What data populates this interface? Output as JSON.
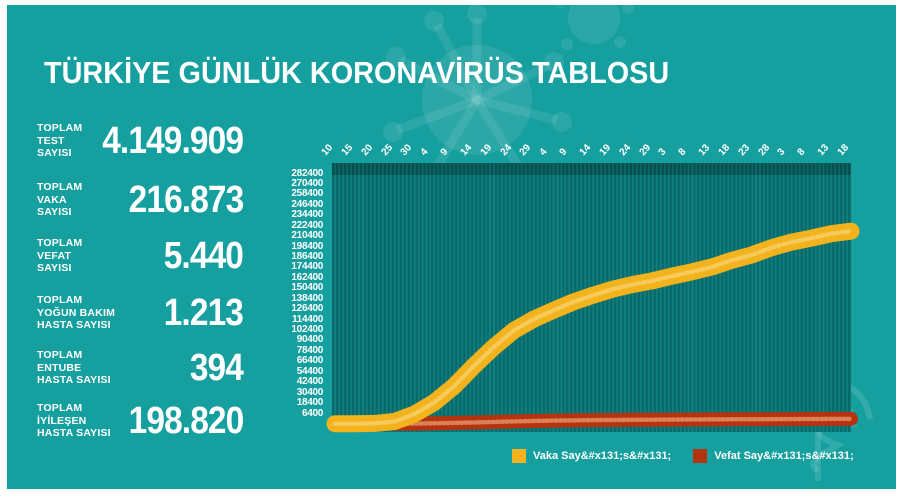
{
  "header": {
    "title": "TÜRKİYE GÜNLÜK KORONAVİRÜS TABLOSU"
  },
  "stats": {
    "items": [
      {
        "lines": [
          "TOPLAM",
          "TEST",
          "SAYISI"
        ],
        "value": "4.149.909"
      },
      {
        "lines": [
          "TOPLAM",
          "VAKA",
          "SAYISI"
        ],
        "value": "216.873"
      },
      {
        "lines": [
          "TOPLAM",
          "VEFAT",
          "SAYISI"
        ],
        "value": "5.440"
      },
      {
        "lines": [
          "TOPLAM",
          "YOĞUN BAKIM",
          "HASTA SAYISI"
        ],
        "value": "1.213"
      },
      {
        "lines": [
          "TOPLAM",
          "ENTUBE",
          "HASTA SAYISI"
        ],
        "value": "394"
      },
      {
        "lines": [
          "TOPLAM",
          "İYİLEŞEN",
          "HASTA SAYISI"
        ],
        "value": "198.820"
      }
    ]
  },
  "legend": {
    "items": [
      {
        "label": "Vaka Say&#x131;s&#x131;",
        "color": "#f2b31d"
      },
      {
        "label": "Vefat Say&#x131;s&#x131;",
        "color": "#b5330f"
      }
    ]
  },
  "colors": {
    "background_teal": "#169f9f",
    "plot_background": "#108080",
    "plot_stripe": "#0a6a6a",
    "cases_yellow": "#f2b31d",
    "deaths_red": "#b5330f",
    "text": "#ffffff",
    "frame": "#ffffff"
  },
  "chart_data": {
    "type": "line",
    "title": "",
    "xlabel": "",
    "ylabel": "",
    "x_tick_labels": [
      "10",
      "15",
      "20",
      "25",
      "30",
      "4",
      "9",
      "14",
      "19",
      "24",
      "29",
      "4",
      "9",
      "14",
      "19",
      "24",
      "29",
      "3",
      "8",
      "13",
      "18",
      "23",
      "28",
      "3",
      "8",
      "13",
      "18"
    ],
    "x_tick_step_days": 5,
    "y_tick_labels": [
      "282400",
      "270400",
      "258400",
      "246400",
      "234400",
      "222400",
      "210400",
      "198400",
      "186400",
      "174400",
      "162400",
      "150400",
      "138400",
      "126400",
      "114400",
      "102400",
      "90400",
      "78400",
      "66400",
      "54400",
      "42400",
      "30400",
      "18400",
      "6400"
    ],
    "ylim": [
      0,
      282400
    ],
    "grid": "vertical daily stripes",
    "legend_position": "bottom",
    "values_estimated_from_plot": true,
    "series": [
      {
        "name": "Vaka Say&#x131;s&#x131;",
        "color": "#f2b31d",
        "values": [
          1,
          18,
          359,
          2433,
          10827,
          23934,
          42282,
          65111,
          86306,
          104912,
          117589,
          127659,
          137115,
          144749,
          151615,
          156827,
          160979,
          166422,
          171121,
          176677,
          184031,
          190165,
          198284,
          204610,
          208938,
          214001,
          216873
        ]
      },
      {
        "name": "Vefat Say&#x131;s&#x131;",
        "color": "#b5330f",
        "values": [
          0,
          0,
          4,
          59,
          168,
          501,
          908,
          1403,
          2017,
          2600,
          3081,
          3461,
          3739,
          4007,
          4199,
          4340,
          4461,
          4609,
          4711,
          4839,
          4950,
          5001,
          5097,
          5206,
          5282,
          5382,
          5440
        ]
      }
    ]
  }
}
